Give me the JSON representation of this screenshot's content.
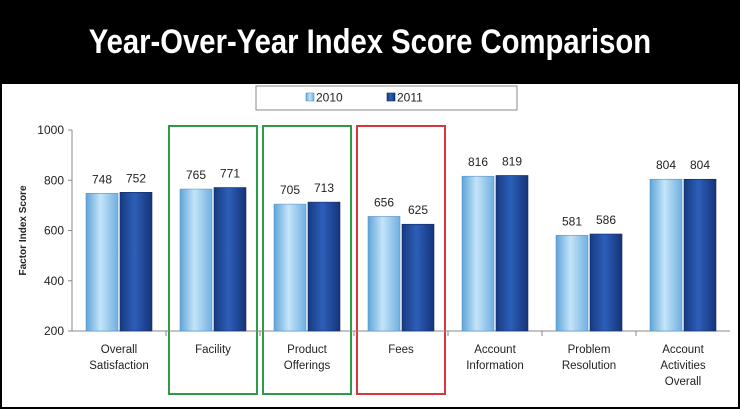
{
  "chart_data": {
    "type": "bar",
    "title": "Year-Over-Year Index Score Comparison",
    "ylabel": "Factor Index Score",
    "xlabel": "",
    "ylim": [
      200,
      1000
    ],
    "yticks": [
      "200",
      "400",
      "600",
      "800",
      "1000"
    ],
    "categories": [
      [
        "Overall",
        "Satisfaction"
      ],
      [
        "Facility"
      ],
      [
        "Product",
        "Offerings"
      ],
      [
        "Fees"
      ],
      [
        "Account",
        "Information"
      ],
      [
        "Problem",
        "Resolution"
      ],
      [
        "Account",
        "Activities",
        "Overall"
      ]
    ],
    "series": [
      {
        "name": "2010",
        "color": "#8fc6ec",
        "values": [
          748,
          765,
          705,
          656,
          816,
          581,
          804
        ]
      },
      {
        "name": "2011",
        "color": "#1f4a9c",
        "values": [
          752,
          771,
          713,
          625,
          819,
          586,
          804
        ]
      }
    ],
    "highlights": [
      {
        "category_index": 1,
        "color": "#2e9b46"
      },
      {
        "category_index": 2,
        "color": "#2e9b46"
      },
      {
        "category_index": 3,
        "color": "#d9363e"
      }
    ],
    "legend_placement": "top-center",
    "grid": false
  }
}
